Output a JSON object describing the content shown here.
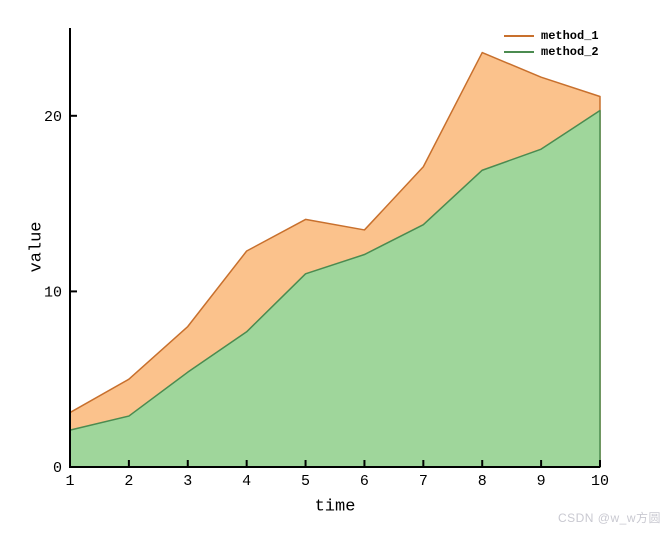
{
  "figure": {
    "watermark": "CSDN @w_w方圆",
    "watermark_color": "#c9c9d1",
    "background": "#ffffff",
    "axis_color": "#000000"
  },
  "chart_data": {
    "type": "area",
    "title": "",
    "xlabel": "time",
    "ylabel": "value",
    "x": [
      1,
      2,
      3,
      4,
      5,
      6,
      7,
      8,
      9,
      10
    ],
    "series": [
      {
        "name": "method_1",
        "values": [
          3.1,
          5.0,
          8.0,
          12.3,
          14.1,
          13.5,
          17.1,
          23.6,
          22.2,
          21.1
        ],
        "fill": "#fbc28c",
        "stroke": "#c8702d"
      },
      {
        "name": "method_2",
        "values": [
          2.1,
          2.9,
          5.4,
          7.7,
          11.0,
          12.1,
          13.8,
          16.9,
          18.1,
          20.3
        ],
        "fill": "#9fd69b",
        "stroke": "#4b8b50"
      }
    ],
    "xticks": [
      "1",
      "2",
      "3",
      "4",
      "5",
      "6",
      "7",
      "8",
      "9",
      "10"
    ],
    "yticks": [
      "0",
      "10",
      "20"
    ],
    "xtick_values": [
      1,
      2,
      3,
      4,
      5,
      6,
      7,
      8,
      9,
      10
    ],
    "ytick_values": [
      0,
      10,
      20
    ],
    "xlim": [
      1,
      10
    ],
    "ylim": [
      0,
      25
    ],
    "grid": false,
    "legend_position": "upper right",
    "legend": [
      {
        "label": "method_1",
        "color": "#c8702d"
      },
      {
        "label": "method_2",
        "color": "#4b8b50"
      }
    ]
  }
}
